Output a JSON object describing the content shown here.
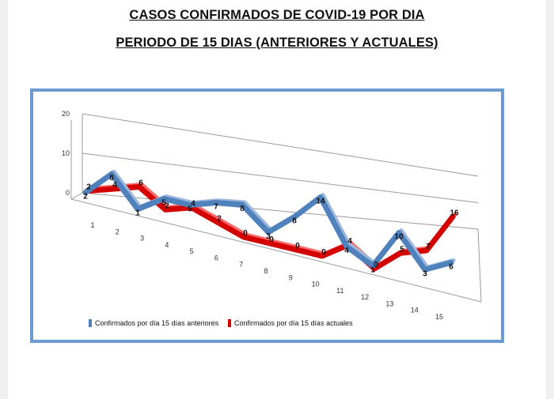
{
  "page": {
    "title_line1": "CASOS CONFIRMADOS DE COVID-19 POR DIA",
    "title_line2": "PERIODO DE 15 DIAS (ANTERIORES Y ACTUALES)"
  },
  "chart_data": {
    "type": "line",
    "title": "",
    "xlabel": "",
    "ylabel": "",
    "categories": [
      "1",
      "2",
      "3",
      "4",
      "5",
      "6",
      "7",
      "8",
      "9",
      "10",
      "11",
      "12",
      "13",
      "14",
      "15"
    ],
    "ylim": [
      0,
      20
    ],
    "yticks": [
      0,
      10,
      20
    ],
    "grid": true,
    "legend_position": "bottom-left",
    "series": [
      {
        "name": "Confirmados por día 15 días anteriores",
        "color": "#4f81bd",
        "values": [
          2,
          8,
          1,
          5,
          5,
          7,
          8,
          3,
          8,
          14,
          4,
          1,
          10,
          3,
          6
        ]
      },
      {
        "name": "Confirmados por día 15 días actuales",
        "color": "#d40000",
        "values": [
          2,
          4,
          6,
          2,
          4,
          2,
          0,
          0,
          0,
          0,
          4,
          0,
          5,
          7,
          16
        ]
      }
    ]
  }
}
